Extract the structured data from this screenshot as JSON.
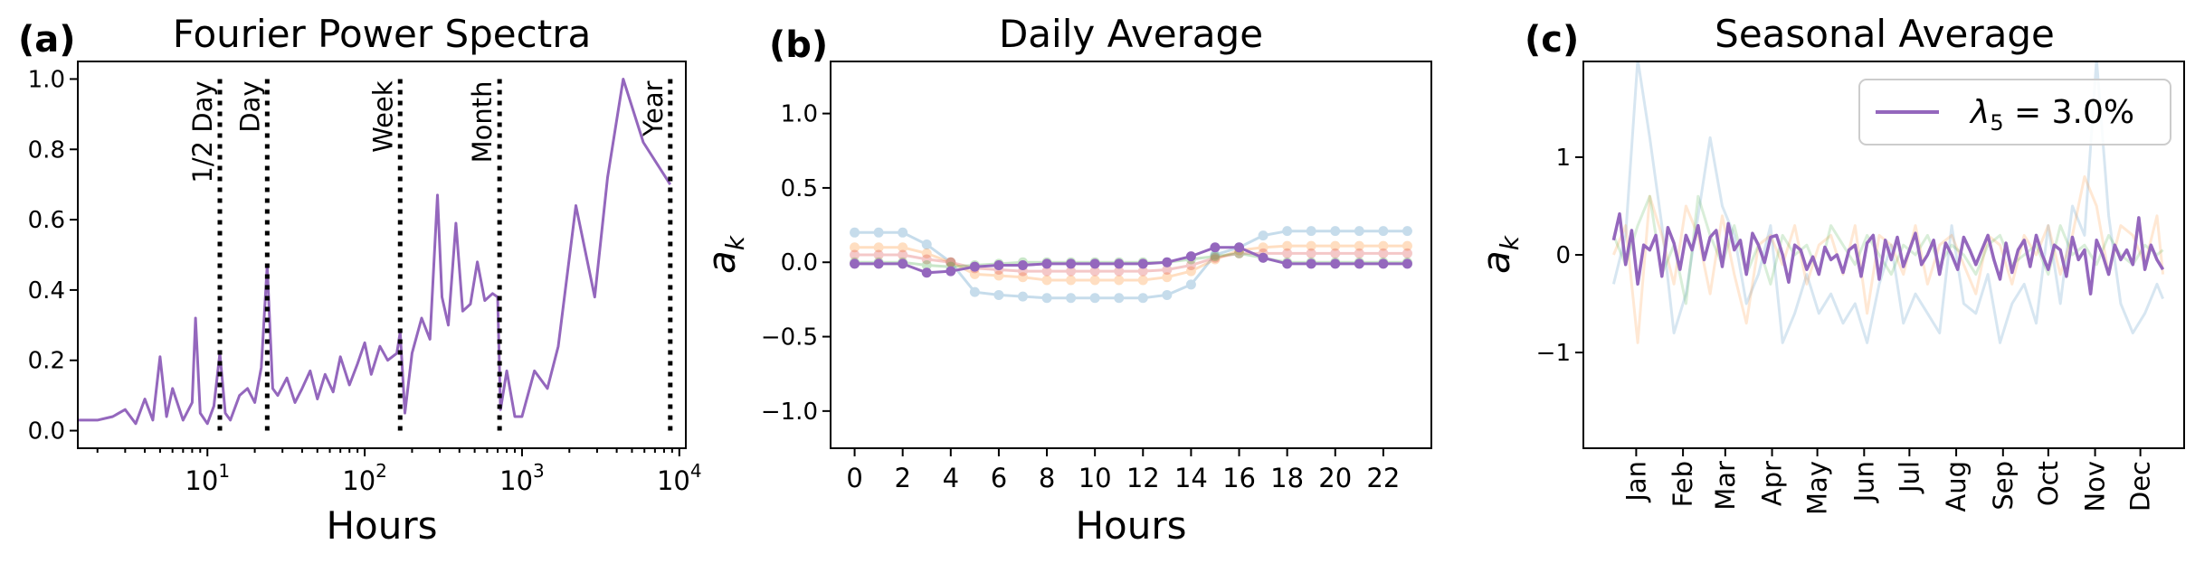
{
  "colors": {
    "main": "#9467bd",
    "blue": "#1f77b4",
    "orange": "#ff7f0e",
    "red": "#d62728",
    "green": "#2ca02c"
  },
  "panels": {
    "a": {
      "label": "(a)"
    },
    "b": {
      "label": "(b)"
    },
    "c": {
      "label": "(c)"
    }
  },
  "chart_data": [
    {
      "type": "line",
      "panel": "a",
      "title": "Fourier Power Spectra",
      "xlabel": "Hours",
      "ylabel": "",
      "xscale": "log",
      "xlim": [
        1.5,
        11000
      ],
      "ylim": [
        -0.05,
        1.05
      ],
      "xticks": [
        {
          "value": 10,
          "base": "10",
          "exp": "1"
        },
        {
          "value": 100,
          "base": "10",
          "exp": "2"
        },
        {
          "value": 1000,
          "base": "10",
          "exp": "3"
        },
        {
          "value": 10000,
          "base": "10",
          "exp": "4"
        }
      ],
      "yticks": [
        "0.0",
        "0.2",
        "0.4",
        "0.6",
        "0.8",
        "1.0"
      ],
      "markers": [
        {
          "label": "1/2 Day",
          "x": 12
        },
        {
          "label": "Day",
          "x": 24
        },
        {
          "label": "Week",
          "x": 168
        },
        {
          "label": "Month",
          "x": 720
        },
        {
          "label": "Year",
          "x": 8760
        }
      ],
      "series": [
        {
          "x": [
            1.5,
            2.0,
            2.5,
            3,
            3.5,
            4,
            4.5,
            5,
            5.5,
            6,
            7,
            8,
            8.4,
            9,
            10,
            11,
            12,
            13,
            14,
            16,
            18,
            20,
            22,
            24,
            26,
            28,
            32,
            36,
            40,
            45,
            50,
            56,
            63,
            70,
            80,
            90,
            100,
            110,
            125,
            140,
            160,
            168,
            180,
            200,
            230,
            260,
            290,
            310,
            340,
            380,
            420,
            470,
            520,
            580,
            650,
            700,
            730,
            800,
            900,
            1000,
            1200,
            1450,
            1700,
            2200,
            2900,
            3500,
            4400,
            5900,
            8760
          ],
          "values": [
            0.03,
            0.03,
            0.04,
            0.06,
            0.02,
            0.09,
            0.03,
            0.21,
            0.04,
            0.12,
            0.03,
            0.08,
            0.32,
            0.05,
            0.02,
            0.07,
            0.22,
            0.05,
            0.03,
            0.1,
            0.12,
            0.08,
            0.18,
            0.47,
            0.12,
            0.1,
            0.15,
            0.08,
            0.12,
            0.17,
            0.09,
            0.16,
            0.11,
            0.21,
            0.13,
            0.19,
            0.25,
            0.16,
            0.24,
            0.2,
            0.22,
            0.28,
            0.05,
            0.22,
            0.32,
            0.26,
            0.67,
            0.38,
            0.3,
            0.59,
            0.34,
            0.36,
            0.48,
            0.37,
            0.39,
            0.38,
            0.06,
            0.17,
            0.04,
            0.04,
            0.17,
            0.12,
            0.24,
            0.64,
            0.38,
            0.72,
            1.0,
            0.82,
            0.7
          ]
        }
      ]
    },
    {
      "type": "line",
      "panel": "b",
      "title": "Daily Average",
      "xlabel": "Hours",
      "ylabel": "a_k",
      "ylabel_main": "a",
      "ylabel_sub": "k",
      "xlim": [
        -1,
        24
      ],
      "ylim": [
        -1.25,
        1.35
      ],
      "xticks": [
        "0",
        "2",
        "4",
        "6",
        "8",
        "10",
        "12",
        "14",
        "16",
        "18",
        "20",
        "22"
      ],
      "yticks": [
        "−1.0",
        "−0.5",
        "0.0",
        "0.5",
        "1.0"
      ],
      "x": [
        0,
        1,
        2,
        3,
        4,
        5,
        6,
        7,
        8,
        9,
        10,
        11,
        12,
        13,
        14,
        15,
        16,
        17,
        18,
        19,
        20,
        21,
        22,
        23
      ],
      "series": [
        {
          "color_key": "blue",
          "opacity": 0.25,
          "values": [
            0.2,
            0.2,
            0.2,
            0.12,
            0.0,
            -0.2,
            -0.22,
            -0.23,
            -0.24,
            -0.24,
            -0.24,
            -0.24,
            -0.24,
            -0.22,
            -0.15,
            0.05,
            0.1,
            0.18,
            0.21,
            0.21,
            0.21,
            0.21,
            0.21,
            0.21
          ]
        },
        {
          "color_key": "orange",
          "opacity": 0.25,
          "values": [
            0.1,
            0.1,
            0.1,
            0.06,
            0.0,
            -0.08,
            -0.09,
            -0.1,
            -0.12,
            -0.12,
            -0.12,
            -0.12,
            -0.12,
            -0.1,
            -0.06,
            0.02,
            0.08,
            0.1,
            0.11,
            0.11,
            0.11,
            0.11,
            0.11,
            0.11
          ]
        },
        {
          "color_key": "red",
          "opacity": 0.25,
          "values": [
            0.05,
            0.05,
            0.05,
            0.02,
            0.0,
            -0.04,
            -0.05,
            -0.06,
            -0.06,
            -0.06,
            -0.06,
            -0.06,
            -0.06,
            -0.05,
            -0.02,
            0.03,
            0.06,
            0.06,
            0.06,
            0.06,
            0.06,
            0.06,
            0.06,
            0.06
          ]
        },
        {
          "color_key": "green",
          "opacity": 0.25,
          "values": [
            0.0,
            0.0,
            0.0,
            -0.02,
            -0.03,
            -0.02,
            -0.01,
            0.0,
            0.0,
            0.0,
            0.0,
            0.0,
            0.0,
            0.0,
            0.02,
            0.04,
            0.06,
            0.03,
            0.0,
            0.0,
            0.0,
            0.0,
            0.0,
            0.0
          ]
        },
        {
          "color_key": "main",
          "opacity": 1,
          "values": [
            -0.01,
            -0.01,
            -0.01,
            -0.07,
            -0.06,
            -0.03,
            -0.02,
            -0.02,
            -0.01,
            -0.01,
            -0.01,
            -0.01,
            -0.01,
            0.0,
            0.04,
            0.1,
            0.1,
            0.03,
            -0.01,
            -0.01,
            -0.01,
            -0.01,
            -0.01,
            -0.01
          ]
        }
      ]
    },
    {
      "type": "line",
      "panel": "c",
      "title": "Seasonal Average",
      "xlabel": "",
      "ylabel": "a_k",
      "ylabel_main": "a",
      "ylabel_sub": "k",
      "xlim": [
        -20,
        378
      ],
      "ylim": [
        -1.98,
        1.98
      ],
      "xticks": [
        {
          "label": "Jan",
          "day": 15
        },
        {
          "label": "Feb",
          "day": 46
        },
        {
          "label": "Mar",
          "day": 74
        },
        {
          "label": "Apr",
          "day": 105
        },
        {
          "label": "May",
          "day": 135
        },
        {
          "label": "Jun",
          "day": 166
        },
        {
          "label": "Jul",
          "day": 196
        },
        {
          "label": "Aug",
          "day": 227
        },
        {
          "label": "Sep",
          "day": 258
        },
        {
          "label": "Oct",
          "day": 288
        },
        {
          "label": "Nov",
          "day": 319
        },
        {
          "label": "Dec",
          "day": 349
        }
      ],
      "yticks": [
        "−1",
        "0",
        "1"
      ],
      "legend": {
        "position": "upper-right",
        "label_main": "λ",
        "label_sub": "5",
        "label_rest": " = 3.0%"
      },
      "series": [
        {
          "name": "λ5 = 3.0%",
          "color_key": "main",
          "opacity": 1,
          "x": [
            0,
            4,
            8,
            12,
            16,
            20,
            24,
            28,
            32,
            36,
            40,
            44,
            48,
            52,
            56,
            60,
            64,
            68,
            72,
            76,
            80,
            84,
            88,
            92,
            96,
            100,
            104,
            108,
            112,
            116,
            120,
            124,
            128,
            132,
            136,
            140,
            144,
            148,
            152,
            156,
            160,
            164,
            168,
            172,
            176,
            180,
            184,
            188,
            192,
            196,
            200,
            204,
            208,
            212,
            216,
            220,
            224,
            228,
            232,
            236,
            240,
            244,
            248,
            252,
            256,
            260,
            264,
            268,
            272,
            276,
            280,
            284,
            288,
            292,
            296,
            300,
            304,
            308,
            312,
            316,
            320,
            324,
            328,
            332,
            336,
            340,
            344,
            348,
            352,
            356,
            360,
            364
          ],
          "values": [
            0.15,
            0.42,
            -0.1,
            0.25,
            -0.3,
            0.1,
            0.05,
            0.2,
            -0.22,
            0.28,
            0.12,
            -0.15,
            0.2,
            0.05,
            0.3,
            -0.05,
            0.18,
            0.25,
            -0.12,
            0.32,
            0.05,
            0.15,
            -0.2,
            0.22,
            0.1,
            -0.08,
            0.18,
            0.2,
            0.0,
            -0.28,
            0.1,
            0.05,
            -0.15,
            -0.02,
            -0.2,
            0.08,
            -0.05,
            0.0,
            -0.18,
            0.05,
            0.1,
            -0.22,
            0.12,
            0.2,
            -0.25,
            0.15,
            -0.05,
            0.18,
            -0.12,
            0.05,
            0.22,
            -0.1,
            0.0,
            0.15,
            -0.2,
            0.12,
            0.0,
            -0.15,
            0.18,
            0.05,
            -0.1,
            0.05,
            0.2,
            -0.05,
            -0.25,
            0.12,
            -0.18,
            0.05,
            0.15,
            -0.12,
            0.2,
            0.0,
            -0.15,
            0.1,
            0.05,
            -0.22,
            0.18,
            -0.05,
            0.05,
            -0.4,
            0.15,
            0.0,
            -0.2,
            0.1,
            -0.05,
            0.05,
            -0.1,
            0.38,
            -0.15,
            0.1,
            -0.05,
            -0.15
          ]
        },
        {
          "name": "",
          "color_key": "blue",
          "opacity": 0.18,
          "x": [
            0,
            8,
            16,
            24,
            32,
            40,
            48,
            56,
            64,
            72,
            80,
            88,
            96,
            104,
            112,
            120,
            128,
            136,
            144,
            152,
            160,
            168,
            176,
            184,
            192,
            200,
            208,
            216,
            224,
            232,
            240,
            248,
            256,
            264,
            272,
            280,
            288,
            296,
            304,
            312,
            320,
            328,
            336,
            344,
            352,
            360,
            364
          ],
          "values": [
            -0.3,
            0.2,
            2.0,
            1.2,
            0.3,
            -0.8,
            -0.4,
            0.4,
            1.2,
            0.5,
            0.2,
            -0.5,
            -0.2,
            0.3,
            -0.9,
            -0.6,
            -0.2,
            -0.6,
            -0.4,
            -0.7,
            -0.5,
            -0.9,
            -0.3,
            0.1,
            -0.7,
            -0.4,
            -0.6,
            -0.8,
            0.3,
            -0.5,
            -0.6,
            -0.2,
            -0.9,
            -0.5,
            -0.3,
            -0.7,
            0.3,
            -0.5,
            0.5,
            0.2,
            2.0,
            0.4,
            -0.5,
            -0.8,
            -0.6,
            -0.3,
            -0.45
          ]
        },
        {
          "name": "",
          "color_key": "orange",
          "opacity": 0.18,
          "x": [
            0,
            8,
            16,
            24,
            32,
            40,
            48,
            56,
            64,
            72,
            80,
            88,
            96,
            104,
            112,
            120,
            128,
            136,
            144,
            152,
            160,
            168,
            176,
            184,
            192,
            200,
            208,
            216,
            224,
            232,
            240,
            248,
            256,
            264,
            272,
            280,
            288,
            296,
            304,
            312,
            320,
            328,
            336,
            344,
            352,
            360,
            364
          ],
          "values": [
            0.0,
            0.3,
            -0.9,
            0.6,
            0.2,
            -0.3,
            0.5,
            0.2,
            -0.4,
            0.4,
            -0.2,
            -0.7,
            0.1,
            0.2,
            -0.1,
            0.3,
            -0.3,
            0.1,
            0.2,
            -0.2,
            0.3,
            -0.6,
            0.2,
            0.1,
            -0.2,
            0.3,
            -0.3,
            0.1,
            0.2,
            -0.1,
            -0.4,
            0.2,
            0.1,
            -0.3,
            0.2,
            0.0,
            0.3,
            -0.2,
            0.2,
            0.8,
            0.5,
            -0.2,
            0.3,
            0.2,
            -0.1,
            0.4,
            -0.2
          ]
        },
        {
          "name": "",
          "color_key": "green",
          "opacity": 0.18,
          "x": [
            0,
            8,
            16,
            24,
            32,
            40,
            48,
            56,
            64,
            72,
            80,
            88,
            96,
            104,
            112,
            120,
            128,
            136,
            144,
            152,
            160,
            168,
            176,
            184,
            192,
            200,
            208,
            216,
            224,
            232,
            240,
            248,
            256,
            264,
            272,
            280,
            288,
            296,
            304,
            312,
            320,
            328,
            336,
            344,
            352,
            360,
            364
          ],
          "values": [
            0.2,
            -0.1,
            0.3,
            0.6,
            -0.2,
            0.1,
            -0.5,
            0.6,
            0.2,
            -0.1,
            0.3,
            -0.2,
            0.1,
            -0.3,
            0.2,
            0.0,
            0.1,
            -0.2,
            0.3,
            0.1,
            -0.1,
            0.2,
            0.0,
            -0.2,
            0.1,
            0.0,
            0.2,
            -0.1,
            0.1,
            0.0,
            -0.2,
            0.1,
            0.2,
            -0.1,
            0.0,
            0.1,
            -0.2,
            0.3,
            0.0,
            0.1,
            -0.1,
            0.2,
            0.0,
            -0.1,
            0.1,
            0.0,
            0.05
          ]
        }
      ]
    }
  ]
}
